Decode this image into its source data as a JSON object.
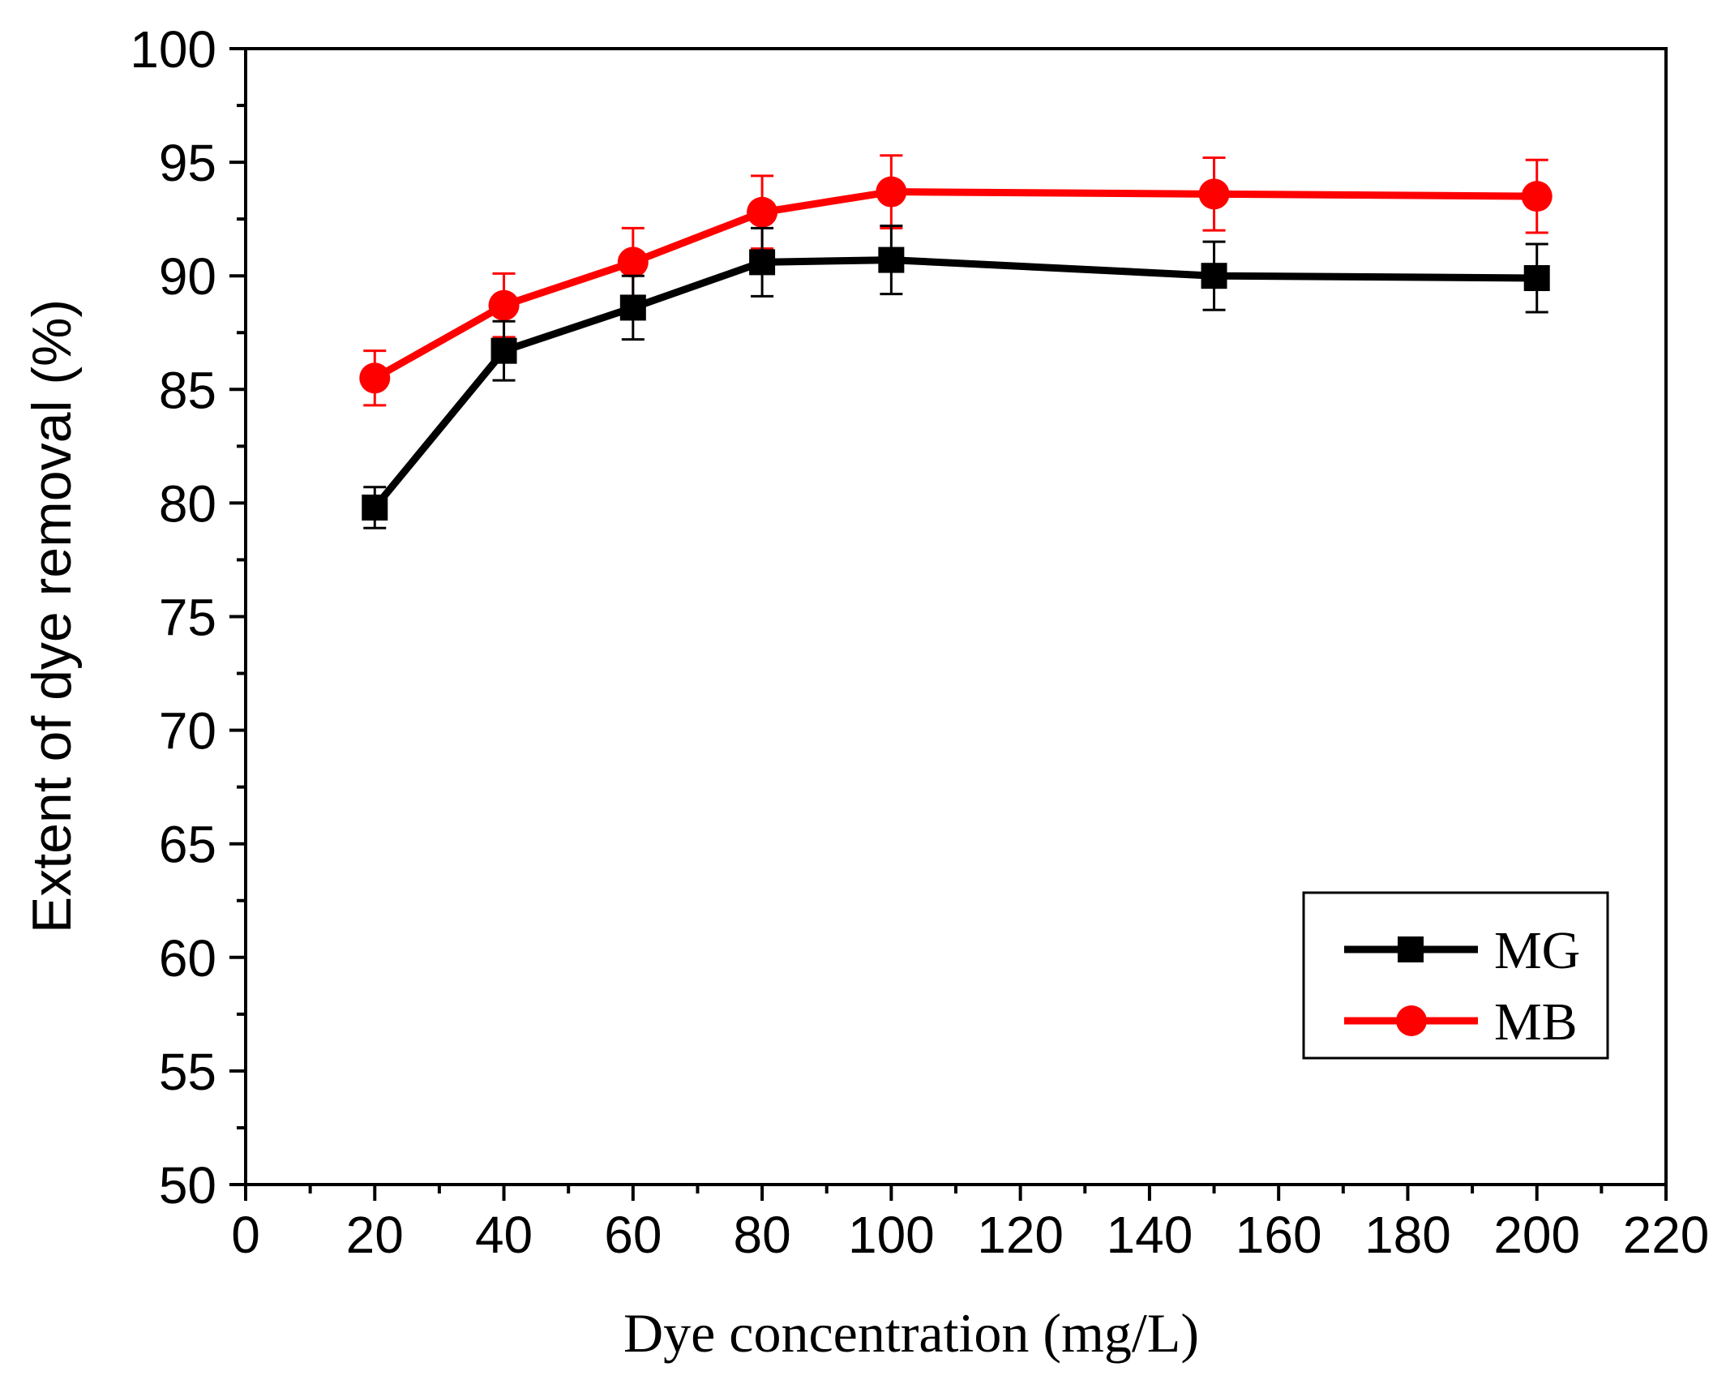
{
  "chart_data": {
    "type": "line",
    "title": "",
    "xlabel": "Dye concentration (mg/L)",
    "ylabel": "Extent of dye removal (%)",
    "xlim": [
      0,
      220
    ],
    "ylim": [
      50,
      100
    ],
    "xticks": [
      0,
      20,
      40,
      60,
      80,
      100,
      120,
      140,
      160,
      180,
      200,
      220
    ],
    "yticks": [
      50,
      55,
      60,
      65,
      70,
      75,
      80,
      85,
      90,
      95,
      100
    ],
    "x": [
      20,
      40,
      60,
      80,
      100,
      150,
      200
    ],
    "series": [
      {
        "name": "MG",
        "color": "#000000",
        "marker": "square",
        "values": [
          79.8,
          86.7,
          88.6,
          90.6,
          90.7,
          90.0,
          89.9
        ],
        "errors": [
          0.9,
          1.3,
          1.4,
          1.5,
          1.5,
          1.5,
          1.5
        ]
      },
      {
        "name": "MB",
        "color": "#ff0000",
        "marker": "circle",
        "values": [
          85.5,
          88.7,
          90.6,
          92.8,
          93.7,
          93.6,
          93.5
        ],
        "errors": [
          1.2,
          1.4,
          1.5,
          1.6,
          1.6,
          1.6,
          1.6
        ]
      }
    ],
    "legend": {
      "position": "lower-right"
    }
  }
}
